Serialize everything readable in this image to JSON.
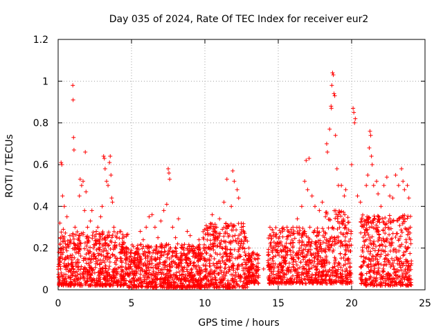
{
  "chart_data": {
    "type": "scatter",
    "title": "Day 035 of 2024, Rate Of TEC Index for receiver eur2",
    "xlabel": "GPS time / hours",
    "ylabel": "ROTI / TECUs",
    "xlim": [
      0,
      25
    ],
    "ylim": [
      0,
      1.2
    ],
    "x_ticks": [
      0,
      5,
      10,
      15,
      20,
      25
    ],
    "x_tick_labels": [
      "0",
      "5",
      "10",
      "15",
      "20",
      "25"
    ],
    "y_ticks": [
      0,
      0.2,
      0.4,
      0.6,
      0.8,
      1.0,
      1.2
    ],
    "y_tick_labels": [
      "0",
      "0.2",
      "0.4",
      "0.6",
      "0.8",
      "1",
      "1.2"
    ],
    "grid": true,
    "marker": "+",
    "color": "#ff0000",
    "series": [
      {
        "points": [
          [
            0.05,
            0.18
          ],
          [
            0.12,
            0.32
          ],
          [
            0.2,
            0.61
          ],
          [
            0.25,
            0.6
          ],
          [
            0.3,
            0.45
          ],
          [
            0.35,
            0.29
          ],
          [
            0.42,
            0.4
          ],
          [
            0.5,
            0.22
          ],
          [
            0.6,
            0.35
          ],
          [
            0.7,
            0.15
          ],
          [
            0.8,
            0.26
          ],
          [
            0.9,
            0.1
          ],
          [
            1.0,
            0.98
          ],
          [
            1.02,
            0.91
          ],
          [
            1.05,
            0.73
          ],
          [
            1.08,
            0.67
          ],
          [
            1.15,
            0.3
          ],
          [
            1.3,
            0.2
          ],
          [
            1.45,
            0.45
          ],
          [
            1.5,
            0.53
          ],
          [
            1.6,
            0.5
          ],
          [
            1.7,
            0.52
          ],
          [
            1.8,
            0.38
          ],
          [
            1.85,
            0.66
          ],
          [
            1.9,
            0.47
          ],
          [
            2.0,
            0.3
          ],
          [
            2.1,
            0.25
          ],
          [
            2.2,
            0.33
          ],
          [
            2.3,
            0.38
          ],
          [
            2.4,
            0.2
          ],
          [
            2.5,
            0.16
          ],
          [
            2.6,
            0.28
          ],
          [
            2.7,
            0.3
          ],
          [
            2.8,
            0.22
          ],
          [
            2.9,
            0.35
          ],
          [
            3.0,
            0.4
          ],
          [
            3.1,
            0.64
          ],
          [
            3.15,
            0.63
          ],
          [
            3.2,
            0.58
          ],
          [
            3.3,
            0.52
          ],
          [
            3.4,
            0.5
          ],
          [
            3.5,
            0.61
          ],
          [
            3.55,
            0.64
          ],
          [
            3.6,
            0.55
          ],
          [
            3.65,
            0.44
          ],
          [
            3.7,
            0.42
          ],
          [
            3.8,
            0.3
          ],
          [
            3.9,
            0.2
          ],
          [
            4.0,
            0.25
          ],
          [
            4.2,
            0.28
          ],
          [
            4.4,
            0.18
          ],
          [
            4.6,
            0.15
          ],
          [
            4.8,
            0.12
          ],
          [
            5.0,
            0.1
          ],
          [
            5.2,
            0.14
          ],
          [
            5.4,
            0.2
          ],
          [
            5.6,
            0.28
          ],
          [
            5.8,
            0.24
          ],
          [
            6.0,
            0.3
          ],
          [
            6.2,
            0.35
          ],
          [
            6.4,
            0.36
          ],
          [
            6.6,
            0.3
          ],
          [
            6.8,
            0.25
          ],
          [
            7.0,
            0.33
          ],
          [
            7.2,
            0.38
          ],
          [
            7.4,
            0.41
          ],
          [
            7.5,
            0.58
          ],
          [
            7.55,
            0.56
          ],
          [
            7.6,
            0.53
          ],
          [
            7.8,
            0.3
          ],
          [
            8.0,
            0.25
          ],
          [
            8.2,
            0.34
          ],
          [
            8.5,
            0.2
          ],
          [
            8.8,
            0.28
          ],
          [
            9.0,
            0.26
          ],
          [
            9.3,
            0.18
          ],
          [
            9.6,
            0.24
          ],
          [
            9.9,
            0.2
          ],
          [
            10.2,
            0.3
          ],
          [
            10.5,
            0.36
          ],
          [
            10.8,
            0.3
          ],
          [
            11.0,
            0.34
          ],
          [
            11.3,
            0.42
          ],
          [
            11.5,
            0.53
          ],
          [
            11.8,
            0.4
          ],
          [
            11.9,
            0.57
          ],
          [
            12.0,
            0.52
          ],
          [
            12.2,
            0.48
          ],
          [
            12.3,
            0.44
          ],
          [
            12.5,
            0.3
          ],
          [
            12.8,
            0.25
          ],
          [
            13.0,
            0.2
          ],
          [
            13.3,
            0.18
          ],
          [
            13.6,
            0.15
          ],
          [
            14.0,
            0.1
          ],
          [
            14.3,
            0.14
          ],
          [
            14.6,
            0.18
          ],
          [
            15.0,
            0.22
          ],
          [
            15.3,
            0.28
          ],
          [
            15.6,
            0.3
          ],
          [
            16.0,
            0.3
          ],
          [
            16.3,
            0.34
          ],
          [
            16.6,
            0.4
          ],
          [
            16.8,
            0.52
          ],
          [
            16.9,
            0.62
          ],
          [
            17.0,
            0.48
          ],
          [
            17.1,
            0.63
          ],
          [
            17.3,
            0.45
          ],
          [
            17.5,
            0.4
          ],
          [
            17.8,
            0.38
          ],
          [
            18.0,
            0.42
          ],
          [
            18.3,
            0.7
          ],
          [
            18.35,
            0.66
          ],
          [
            18.5,
            0.77
          ],
          [
            18.6,
            0.88
          ],
          [
            18.62,
            0.87
          ],
          [
            18.65,
            0.98
          ],
          [
            18.7,
            1.04
          ],
          [
            18.75,
            1.03
          ],
          [
            18.8,
            0.94
          ],
          [
            18.85,
            0.93
          ],
          [
            18.9,
            0.74
          ],
          [
            19.0,
            0.58
          ],
          [
            19.1,
            0.5
          ],
          [
            19.3,
            0.5
          ],
          [
            19.5,
            0.45
          ],
          [
            19.6,
            0.48
          ],
          [
            20.0,
            0.6
          ],
          [
            20.1,
            0.87
          ],
          [
            20.15,
            0.85
          ],
          [
            20.2,
            0.8
          ],
          [
            20.25,
            0.82
          ],
          [
            20.4,
            0.45
          ],
          [
            20.6,
            0.42
          ],
          [
            20.8,
            0.3
          ],
          [
            21.0,
            0.5
          ],
          [
            21.1,
            0.55
          ],
          [
            21.2,
            0.68
          ],
          [
            21.25,
            0.76
          ],
          [
            21.3,
            0.74
          ],
          [
            21.35,
            0.64
          ],
          [
            21.4,
            0.6
          ],
          [
            21.5,
            0.5
          ],
          [
            21.7,
            0.52
          ],
          [
            21.8,
            0.46
          ],
          [
            22.0,
            0.4
          ],
          [
            22.2,
            0.5
          ],
          [
            22.4,
            0.54
          ],
          [
            22.5,
            0.3
          ],
          [
            22.6,
            0.45
          ],
          [
            22.8,
            0.44
          ],
          [
            23.0,
            0.55
          ],
          [
            23.2,
            0.5
          ],
          [
            23.4,
            0.58
          ],
          [
            23.5,
            0.52
          ],
          [
            23.6,
            0.48
          ],
          [
            23.8,
            0.5
          ],
          [
            23.9,
            0.44
          ],
          [
            24.0,
            0.3
          ]
        ],
        "dense_band": {
          "note_free_values": true,
          "segments": [
            [
              0.0,
              4.8,
              0.02,
              0.28
            ],
            [
              4.8,
              9.8,
              0.01,
              0.22
            ],
            [
              9.8,
              12.9,
              0.01,
              0.32
            ],
            [
              12.9,
              13.7,
              0.03,
              0.18
            ],
            [
              14.3,
              18.2,
              0.03,
              0.3
            ],
            [
              18.2,
              20.0,
              0.03,
              0.38
            ],
            [
              20.6,
              24.1,
              0.02,
              0.36
            ]
          ]
        }
      }
    ]
  }
}
